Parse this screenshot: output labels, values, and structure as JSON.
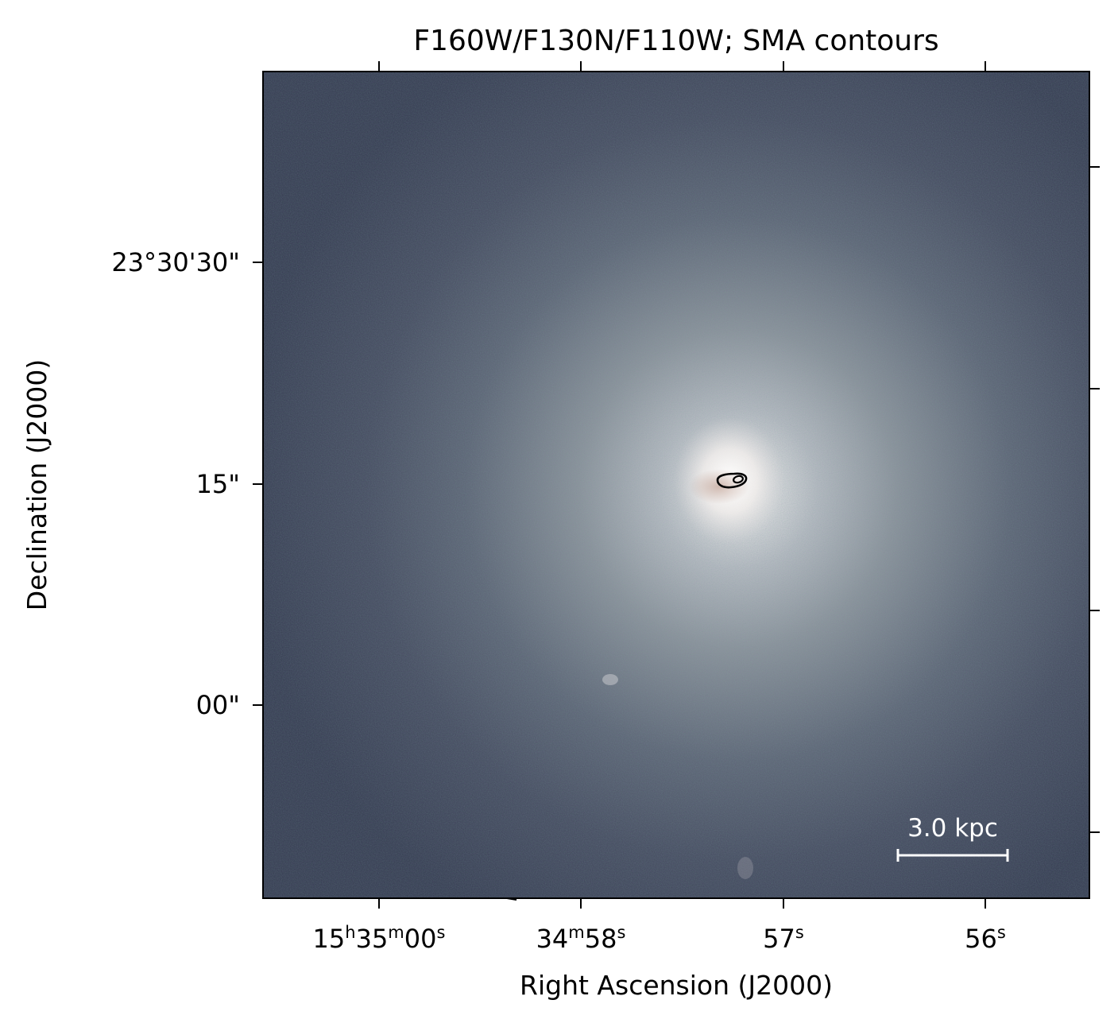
{
  "figure": {
    "title": "F160W/F130N/F110W; SMA contours",
    "xlabel": "Right Ascension (J2000)",
    "ylabel": "Declination (J2000)",
    "scalebar_label": "3.0 kpc"
  },
  "axes": {
    "x_ticks": [
      {
        "main": "15",
        "parts": [
          [
            "h",
            "35"
          ],
          [
            "m",
            "00"
          ],
          [
            "s",
            ""
          ]
        ],
        "coord": 0
      },
      {
        "main": "34",
        "parts": [
          [
            "m",
            "58"
          ],
          [
            "s",
            ""
          ]
        ],
        "coord": 2
      },
      {
        "main": "57",
        "parts": [
          [
            "s",
            ""
          ]
        ],
        "coord": 3
      },
      {
        "main": "56",
        "parts": [
          [
            "s",
            ""
          ]
        ],
        "coord": 4
      }
    ],
    "y_ticks": [
      {
        "label": "23°30'30\"",
        "coord": 30
      },
      {
        "label": "15\"",
        "coord": 15
      },
      {
        "label": "00\"",
        "coord": 0
      }
    ]
  },
  "colors": {
    "background_sky": "#3b3f55",
    "galaxy_core": "#f4f2f0",
    "galaxy_halo": "#7f8590",
    "contour": "#000000",
    "scalebar": "#ffffff"
  }
}
